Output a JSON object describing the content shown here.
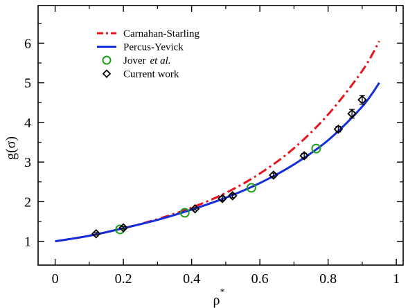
{
  "chart_data": {
    "type": "line",
    "title": "",
    "xlabel": "ρ",
    "xlabel_superscript": "*",
    "ylabel": "g(σ)",
    "xlim": [
      -0.05,
      1.02
    ],
    "ylim": [
      0.4,
      6.95
    ],
    "xticks": [
      0,
      0.2,
      0.4,
      0.6,
      0.8,
      1
    ],
    "xtick_labels": [
      "0",
      "0.2",
      "0.4",
      "0.6",
      "0.8",
      "1"
    ],
    "yticks": [
      1,
      2,
      3,
      4,
      5,
      6
    ],
    "ytick_labels": [
      "1",
      "2",
      "3",
      "4",
      "5",
      "6"
    ],
    "grid": false,
    "legend_position": "top-left",
    "series": [
      {
        "name": "Carnahan-Starling",
        "kind": "curve",
        "color": "#e8141c",
        "style": "dash-dot",
        "x": [
          0,
          0.1,
          0.2,
          0.3,
          0.4,
          0.5,
          0.6,
          0.7,
          0.8,
          0.9,
          0.95
        ],
        "y": [
          1.0,
          1.14,
          1.33,
          1.56,
          1.85,
          2.22,
          2.71,
          3.35,
          4.2,
          5.3,
          6.05
        ]
      },
      {
        "name": "Percus-Yevick",
        "kind": "curve",
        "color": "#1530d8",
        "style": "solid",
        "x": [
          0,
          0.1,
          0.2,
          0.3,
          0.4,
          0.5,
          0.6,
          0.7,
          0.8,
          0.9,
          0.95
        ],
        "y": [
          1.0,
          1.14,
          1.33,
          1.54,
          1.8,
          2.1,
          2.47,
          2.94,
          3.55,
          4.4,
          5.0
        ]
      },
      {
        "name": "Jover",
        "name_suffix": "et al.",
        "kind": "points",
        "marker": "circle",
        "color": "#1aa01a",
        "x": [
          0.19,
          0.38,
          0.575,
          0.765
        ],
        "y": [
          1.3,
          1.72,
          2.35,
          3.34
        ]
      },
      {
        "name": "Current work",
        "kind": "points",
        "marker": "diamond",
        "color": "#000000",
        "x": [
          0.12,
          0.2,
          0.41,
          0.49,
          0.52,
          0.64,
          0.73,
          0.83,
          0.87,
          0.9
        ],
        "y": [
          1.19,
          1.34,
          1.82,
          2.08,
          2.15,
          2.67,
          3.16,
          3.83,
          4.22,
          4.57
        ],
        "yerr": [
          0.03,
          0.03,
          0.03,
          0.05,
          0.05,
          0.05,
          0.06,
          0.07,
          0.11,
          0.11
        ]
      }
    ]
  }
}
